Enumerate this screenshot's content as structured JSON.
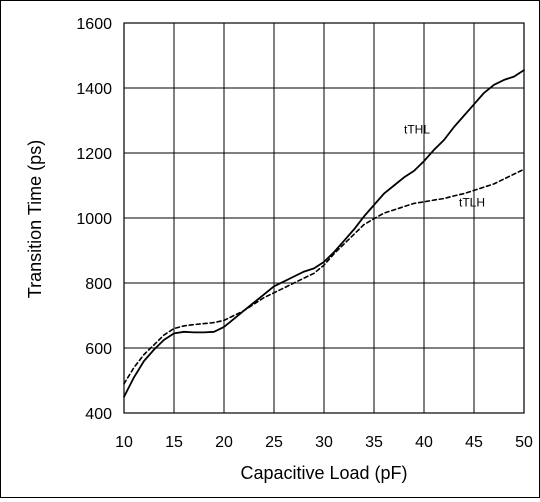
{
  "chart_data": {
    "type": "line",
    "title": "",
    "xlabel": "Capacitive Load (pF)",
    "ylabel": "Transition Time (ps)",
    "xlim": [
      10,
      50
    ],
    "ylim": [
      400,
      1600
    ],
    "xticks": [
      10,
      15,
      20,
      25,
      30,
      35,
      40,
      45,
      50
    ],
    "yticks": [
      400,
      600,
      800,
      1000,
      1200,
      1400,
      1600
    ],
    "grid": true,
    "legend": "none (series labelled directly on the plot)",
    "series": [
      {
        "name": "tTHL",
        "style": "solid",
        "color": "#000000",
        "x": [
          10,
          11,
          12,
          13,
          14,
          15,
          16,
          17,
          18,
          19,
          20,
          21,
          22,
          23,
          24,
          25,
          26,
          27,
          28,
          29,
          30,
          31,
          32,
          33,
          34,
          35,
          36,
          37,
          38,
          39,
          40,
          41,
          42,
          43,
          44,
          45,
          46,
          47,
          48,
          49,
          50
        ],
        "y": [
          450,
          510,
          560,
          595,
          625,
          645,
          650,
          648,
          648,
          650,
          665,
          690,
          715,
          740,
          765,
          790,
          805,
          820,
          835,
          845,
          865,
          895,
          930,
          965,
          1005,
          1040,
          1075,
          1100,
          1125,
          1145,
          1175,
          1210,
          1240,
          1280,
          1315,
          1350,
          1385,
          1410,
          1425,
          1435,
          1455
        ]
      },
      {
        "name": "tTLH",
        "style": "dashed",
        "color": "#000000",
        "x": [
          10,
          11,
          12,
          13,
          14,
          15,
          16,
          17,
          18,
          19,
          20,
          21,
          22,
          23,
          24,
          25,
          26,
          27,
          28,
          29,
          30,
          31,
          32,
          33,
          34,
          35,
          36,
          37,
          38,
          39,
          40,
          41,
          42,
          43,
          44,
          45,
          46,
          47,
          48,
          49,
          50
        ],
        "y": [
          490,
          540,
          580,
          610,
          640,
          660,
          668,
          672,
          675,
          678,
          685,
          700,
          715,
          735,
          755,
          770,
          785,
          800,
          815,
          830,
          855,
          890,
          920,
          950,
          980,
          998,
          1015,
          1025,
          1035,
          1045,
          1050,
          1055,
          1060,
          1068,
          1075,
          1085,
          1095,
          1105,
          1120,
          1135,
          1150
        ]
      }
    ],
    "annotations": [
      {
        "text": "tTHL",
        "x": 38,
        "y": 1260
      },
      {
        "text": "tTLH",
        "x": 43.5,
        "y": 1035
      }
    ]
  }
}
